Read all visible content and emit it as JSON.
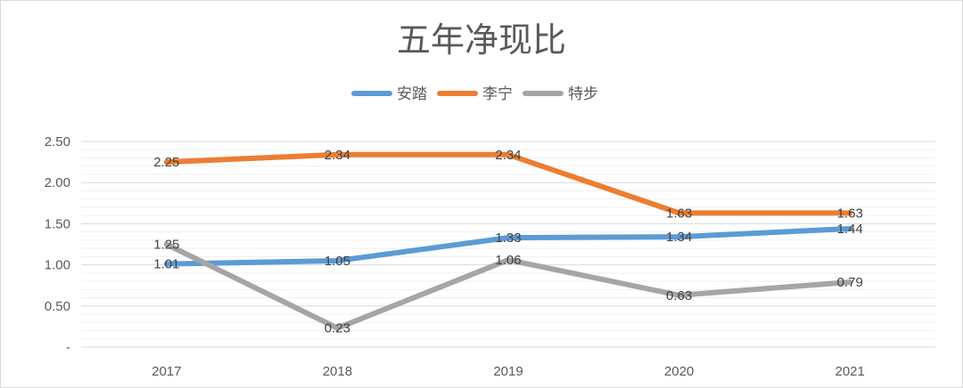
{
  "chart_data": {
    "type": "line",
    "title": "五年净现比",
    "categories": [
      "2017",
      "2018",
      "2019",
      "2020",
      "2021"
    ],
    "series": [
      {
        "name": "安踏",
        "color": "#5b9bd5",
        "values": [
          1.01,
          1.05,
          1.33,
          1.34,
          1.44
        ]
      },
      {
        "name": "李宁",
        "color": "#ed7d31",
        "values": [
          2.25,
          2.34,
          2.34,
          1.63,
          1.63
        ]
      },
      {
        "name": "特步",
        "color": "#a5a5a5",
        "values": [
          1.25,
          0.23,
          1.06,
          0.63,
          0.79
        ]
      }
    ],
    "ylim": [
      0,
      2.5
    ],
    "yticks": [
      0,
      0.5,
      1.0,
      1.5,
      2.0,
      2.5
    ],
    "ytick_labels": [
      "-",
      "0.50",
      "1.00",
      "1.50",
      "2.00",
      "2.50"
    ],
    "legend_position": "top-center",
    "grid": true,
    "data_labels": true
  }
}
